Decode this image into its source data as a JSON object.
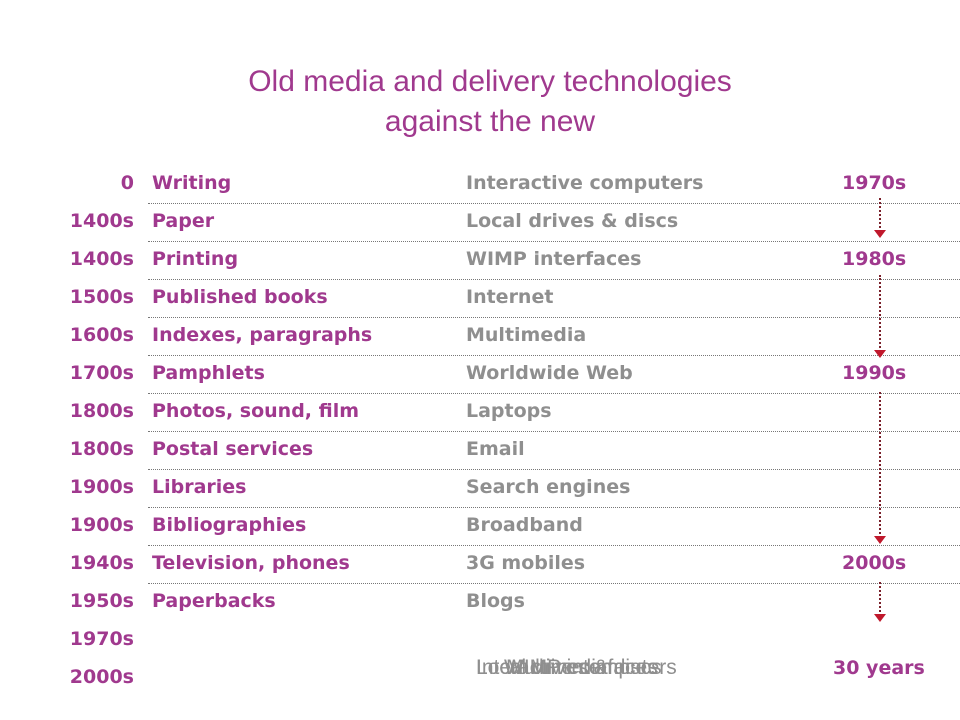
{
  "title": {
    "line1": "Old media and delivery technologies",
    "line2": "against the new"
  },
  "rows": [
    {
      "year": "0",
      "old": "Writing",
      "new": "Interactive computers",
      "decade": "1970s"
    },
    {
      "year": "1400s",
      "old": "Paper",
      "new": "Local drives & discs",
      "decade": ""
    },
    {
      "year": "1400s",
      "old": "Printing",
      "new": "WIMP interfaces",
      "decade": "1980s"
    },
    {
      "year": "1500s",
      "old": "Published books",
      "new": "Internet",
      "decade": ""
    },
    {
      "year": "1600s",
      "old": "Indexes, paragraphs",
      "new": "Multimedia",
      "decade": ""
    },
    {
      "year": "1700s",
      "old": "Pamphlets",
      "new": "Worldwide Web",
      "decade": "1990s"
    },
    {
      "year": "1800s",
      "old": "Photos, sound, film",
      "new": "Laptops",
      "decade": ""
    },
    {
      "year": "1800s",
      "old": "Postal services",
      "new": "Email",
      "decade": ""
    },
    {
      "year": "1900s",
      "old": "Libraries",
      "new": "Search engines",
      "decade": ""
    },
    {
      "year": "1900s",
      "old": "Bibliographies",
      "new": "Broadband",
      "decade": ""
    },
    {
      "year": "1940s",
      "old": "Television, phones",
      "new": "3G mobiles",
      "decade": "2000s"
    },
    {
      "year": "1950s",
      "old": "Paperbacks",
      "new": "Blogs",
      "decade": ""
    },
    {
      "year": "1970s",
      "old": "",
      "new": "",
      "decade": ""
    },
    {
      "year": "2000s",
      "old": "",
      "new": "",
      "decade": ""
    }
  ],
  "footer": {
    "overlapping_labels": [
      "Interactive computers",
      "Local drives & discs",
      "WIMP interfaces",
      "Multimedia"
    ],
    "total": "30 years"
  },
  "colors": {
    "accent": "#a0398e",
    "secondary_text": "#8f8f8f",
    "arrow": "#c0182c"
  }
}
